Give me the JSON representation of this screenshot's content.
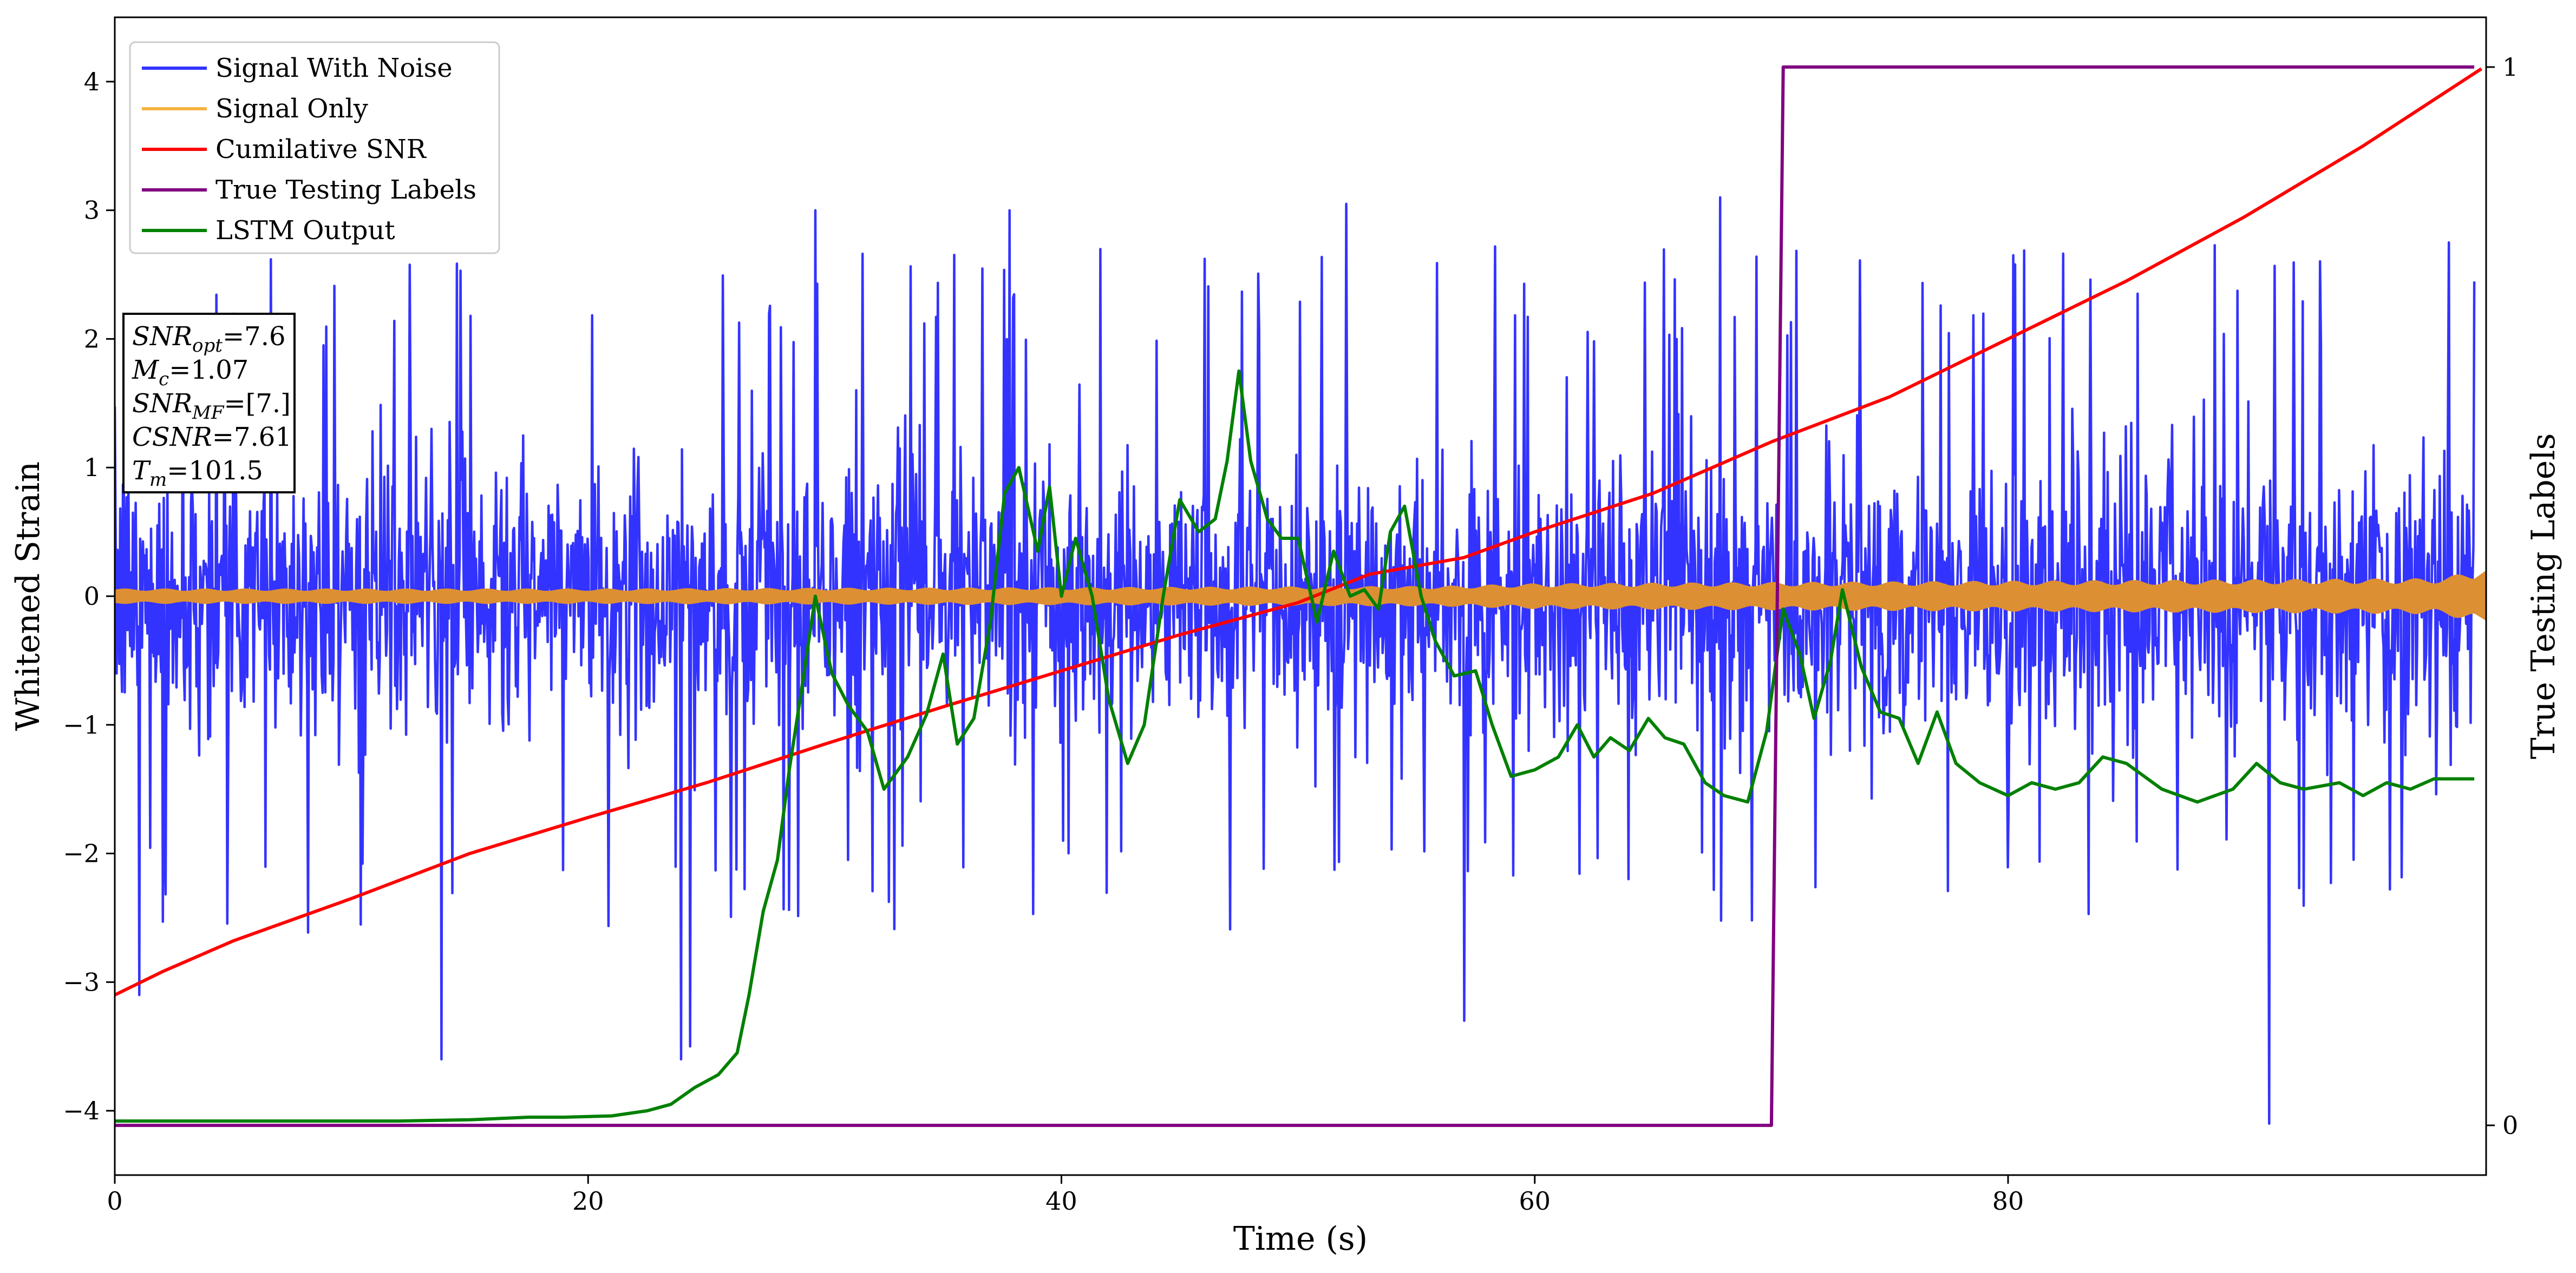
{
  "chart_data": {
    "type": "line",
    "xlabel": "Time (s)",
    "ylabel": "Whitened Strain",
    "y2label": "True Testing Labels",
    "xlim": [
      0,
      100.2
    ],
    "ylim": [
      -4.5,
      4.5
    ],
    "y2lim": [
      -0.047,
      1.047
    ],
    "xticks": [
      0,
      20,
      40,
      60,
      80
    ],
    "yticks": [
      -4,
      -3,
      -2,
      -1,
      0,
      1,
      2,
      3,
      4
    ],
    "y2ticks": [
      0,
      1
    ],
    "grid": false,
    "legend": {
      "placement": "top-left",
      "entries": [
        {
          "label": "Signal With Noise",
          "color": "#3333ff"
        },
        {
          "label": "Signal Only",
          "color": "#f5b342"
        },
        {
          "label": "Cumilative SNR",
          "color": "#ff0000"
        },
        {
          "label": "True Testing Labels",
          "color": "#800080"
        },
        {
          "label": "LSTM Output",
          "color": "#008000"
        }
      ]
    },
    "info_box": {
      "placement": "left",
      "lines": [
        {
          "sym": "SNR",
          "sub": "opt",
          "value": "=7.6"
        },
        {
          "sym": "M",
          "sub": "c",
          "value": "=1.07"
        },
        {
          "sym": "SNR",
          "sub": "MF",
          "value": "=[7.]"
        },
        {
          "sym": "CSNR",
          "sub": "",
          "value": "=7.61"
        },
        {
          "sym": "T",
          "sub": "m",
          "value": "=101.5"
        }
      ]
    },
    "series": [
      {
        "name": "Signal With Noise",
        "color": "#3333ff",
        "style": "dense noise band",
        "x_range": [
          0,
          99.7
        ],
        "core_band": [
          -0.85,
          0.85
        ],
        "typical_extremes": [
          -2.5,
          2.6
        ],
        "notable_peaks": [
          {
            "x": 1.0,
            "y": -3.1
          },
          {
            "x": 13.8,
            "y": -3.6
          },
          {
            "x": 23.9,
            "y": -3.6
          },
          {
            "x": 24.3,
            "y": -3.5
          },
          {
            "x": 29.6,
            "y": 3.0
          },
          {
            "x": 37.8,
            "y": 3.0
          },
          {
            "x": 52.0,
            "y": 3.05
          },
          {
            "x": 57.0,
            "y": -3.3
          },
          {
            "x": 67.8,
            "y": 3.1
          },
          {
            "x": 91.0,
            "y": -4.1
          },
          {
            "x": 98.6,
            "y": 2.75
          }
        ]
      },
      {
        "name": "Signal Only",
        "color": "#dd8f33",
        "style": "oscillating band",
        "points": [
          [
            0,
            0.06
          ],
          [
            20,
            0.06
          ],
          [
            40,
            0.07
          ],
          [
            56,
            0.08
          ],
          [
            60,
            0.1
          ],
          [
            80,
            0.12
          ],
          [
            98,
            0.14
          ],
          [
            100,
            0.2
          ]
        ]
      },
      {
        "name": "Cumilative SNR",
        "color": "#ff0000",
        "axis": "left",
        "points": [
          [
            0,
            -3.1
          ],
          [
            2,
            -2.92
          ],
          [
            5,
            -2.68
          ],
          [
            10,
            -2.35
          ],
          [
            15,
            -2.0
          ],
          [
            20,
            -1.72
          ],
          [
            25,
            -1.45
          ],
          [
            30,
            -1.15
          ],
          [
            35,
            -0.86
          ],
          [
            40,
            -0.58
          ],
          [
            45,
            -0.3
          ],
          [
            50,
            -0.05
          ],
          [
            53,
            0.17
          ],
          [
            57,
            0.3
          ],
          [
            60,
            0.5
          ],
          [
            65,
            0.8
          ],
          [
            70,
            1.2
          ],
          [
            75,
            1.55
          ],
          [
            80,
            2.0
          ],
          [
            85,
            2.45
          ],
          [
            90,
            2.95
          ],
          [
            95,
            3.5
          ],
          [
            100,
            4.1
          ]
        ]
      },
      {
        "name": "True Testing Labels",
        "color": "#800080",
        "axis": "right",
        "points": [
          [
            0,
            0
          ],
          [
            70.0,
            0
          ],
          [
            70.5,
            1
          ],
          [
            99.7,
            1
          ]
        ]
      },
      {
        "name": "LSTM Output",
        "color": "#008000",
        "axis": "left",
        "points": [
          [
            0,
            -4.08
          ],
          [
            12,
            -4.08
          ],
          [
            15,
            -4.07
          ],
          [
            17.5,
            -4.05
          ],
          [
            19,
            -4.05
          ],
          [
            21,
            -4.04
          ],
          [
            22.5,
            -4.0
          ],
          [
            23.5,
            -3.95
          ],
          [
            24.5,
            -3.82
          ],
          [
            25.5,
            -3.72
          ],
          [
            26.3,
            -3.55
          ],
          [
            26.8,
            -3.1
          ],
          [
            27.4,
            -2.45
          ],
          [
            28.0,
            -2.05
          ],
          [
            28.5,
            -1.35
          ],
          [
            29.0,
            -0.75
          ],
          [
            29.6,
            0.0
          ],
          [
            30.3,
            -0.6
          ],
          [
            31.0,
            -0.85
          ],
          [
            31.8,
            -1.05
          ],
          [
            32.5,
            -1.5
          ],
          [
            33.5,
            -1.25
          ],
          [
            34.3,
            -0.92
          ],
          [
            35.0,
            -0.45
          ],
          [
            35.6,
            -1.15
          ],
          [
            36.3,
            -0.95
          ],
          [
            37.0,
            -0.2
          ],
          [
            37.6,
            0.8
          ],
          [
            38.2,
            1.0
          ],
          [
            39.0,
            0.35
          ],
          [
            39.5,
            0.85
          ],
          [
            40.0,
            0.0
          ],
          [
            40.6,
            0.45
          ],
          [
            41.3,
            0.0
          ],
          [
            42.0,
            -0.8
          ],
          [
            42.8,
            -1.3
          ],
          [
            43.5,
            -1.0
          ],
          [
            44.3,
            0.0
          ],
          [
            45.0,
            0.75
          ],
          [
            45.8,
            0.5
          ],
          [
            46.5,
            0.6
          ],
          [
            47.0,
            1.05
          ],
          [
            47.5,
            1.75
          ],
          [
            48.0,
            1.05
          ],
          [
            48.7,
            0.6
          ],
          [
            49.3,
            0.45
          ],
          [
            50.0,
            0.45
          ],
          [
            50.8,
            -0.2
          ],
          [
            51.5,
            0.35
          ],
          [
            52.2,
            0.0
          ],
          [
            52.8,
            0.05
          ],
          [
            53.4,
            -0.1
          ],
          [
            53.9,
            0.5
          ],
          [
            54.5,
            0.7
          ],
          [
            55.2,
            0.0
          ],
          [
            55.8,
            -0.35
          ],
          [
            56.6,
            -0.62
          ],
          [
            57.5,
            -0.58
          ],
          [
            58.2,
            -1.0
          ],
          [
            59.0,
            -1.4
          ],
          [
            60.0,
            -1.35
          ],
          [
            61.0,
            -1.25
          ],
          [
            61.8,
            -1.0
          ],
          [
            62.5,
            -1.25
          ],
          [
            63.2,
            -1.1
          ],
          [
            64.0,
            -1.2
          ],
          [
            64.8,
            -0.95
          ],
          [
            65.5,
            -1.1
          ],
          [
            66.3,
            -1.15
          ],
          [
            67.2,
            -1.45
          ],
          [
            68.0,
            -1.55
          ],
          [
            69.0,
            -1.6
          ],
          [
            69.8,
            -1.05
          ],
          [
            70.5,
            -0.1
          ],
          [
            71.2,
            -0.45
          ],
          [
            71.8,
            -0.95
          ],
          [
            72.5,
            -0.5
          ],
          [
            73.0,
            0.05
          ],
          [
            73.8,
            -0.55
          ],
          [
            74.6,
            -0.9
          ],
          [
            75.4,
            -0.95
          ],
          [
            76.2,
            -1.3
          ],
          [
            77.0,
            -0.9
          ],
          [
            77.8,
            -1.3
          ],
          [
            78.8,
            -1.45
          ],
          [
            80.0,
            -1.55
          ],
          [
            81.0,
            -1.45
          ],
          [
            82.0,
            -1.5
          ],
          [
            83.0,
            -1.45
          ],
          [
            84.0,
            -1.25
          ],
          [
            85.0,
            -1.3
          ],
          [
            86.5,
            -1.5
          ],
          [
            88.0,
            -1.6
          ],
          [
            89.5,
            -1.5
          ],
          [
            90.5,
            -1.3
          ],
          [
            91.5,
            -1.45
          ],
          [
            92.5,
            -1.5
          ],
          [
            94.0,
            -1.45
          ],
          [
            95.0,
            -1.55
          ],
          [
            96.0,
            -1.45
          ],
          [
            97.0,
            -1.5
          ],
          [
            98.0,
            -1.42
          ],
          [
            99.7,
            -1.42
          ]
        ]
      }
    ]
  }
}
